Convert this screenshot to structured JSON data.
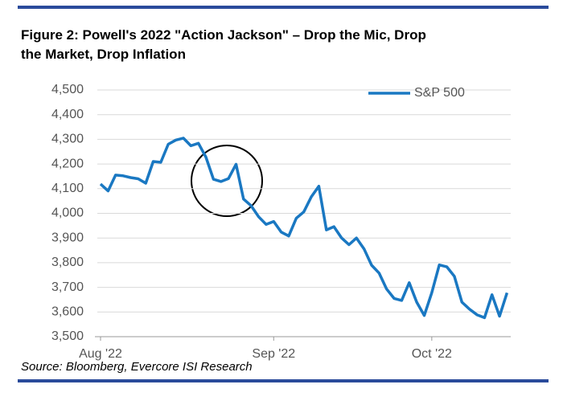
{
  "chart_data": {
    "type": "line",
    "title": "Figure 2: Powell's 2022 \"Action Jackson\" – Drop the Mic, Drop the Market, Drop Inflation",
    "source": "Source: Bloomberg, Evercore ISI Research",
    "categories": [
      "Aug '22",
      null,
      null,
      null,
      null,
      null,
      null,
      null,
      null,
      null,
      null,
      null,
      null,
      null,
      null,
      null,
      null,
      null,
      null,
      null,
      null,
      null,
      null,
      "Sep '22",
      null,
      null,
      null,
      null,
      null,
      null,
      null,
      null,
      null,
      null,
      null,
      null,
      null,
      null,
      null,
      null,
      null,
      null,
      null,
      null,
      "Oct '22",
      null,
      null,
      null,
      null,
      null,
      null,
      null,
      null,
      null,
      null
    ],
    "series": [
      {
        "name": "S&P 500",
        "color": "#1a78c2",
        "values": [
          4119,
          4091,
          4155,
          4152,
          4145,
          4140,
          4122,
          4210,
          4207,
          4280,
          4297,
          4305,
          4274,
          4284,
          4228,
          4138,
          4129,
          4141,
          4199,
          4058,
          4031,
          3986,
          3955,
          3967,
          3924,
          3908,
          3980,
          4006,
          4067,
          4110,
          3933,
          3946,
          3901,
          3873,
          3900,
          3856,
          3790,
          3758,
          3693,
          3655,
          3647,
          3719,
          3640,
          3586,
          3678,
          3791,
          3783,
          3745,
          3640,
          3612,
          3589,
          3577,
          3670,
          3583,
          3678
        ]
      }
    ],
    "ylim": [
      3500,
      4500
    ],
    "yticks": [
      {
        "value": 3500,
        "label": "3,500"
      },
      {
        "value": 3600,
        "label": "3,600"
      },
      {
        "value": 3700,
        "label": "3,700"
      },
      {
        "value": 3800,
        "label": "3,800"
      },
      {
        "value": 3900,
        "label": "3,900"
      },
      {
        "value": 4000,
        "label": "4,000"
      },
      {
        "value": 4100,
        "label": "4,100"
      },
      {
        "value": 4200,
        "label": "4,200"
      },
      {
        "value": 4300,
        "label": "4,300"
      },
      {
        "value": 4400,
        "label": "4,400"
      },
      {
        "value": 4500,
        "label": "4,500"
      }
    ],
    "grid": true
  }
}
